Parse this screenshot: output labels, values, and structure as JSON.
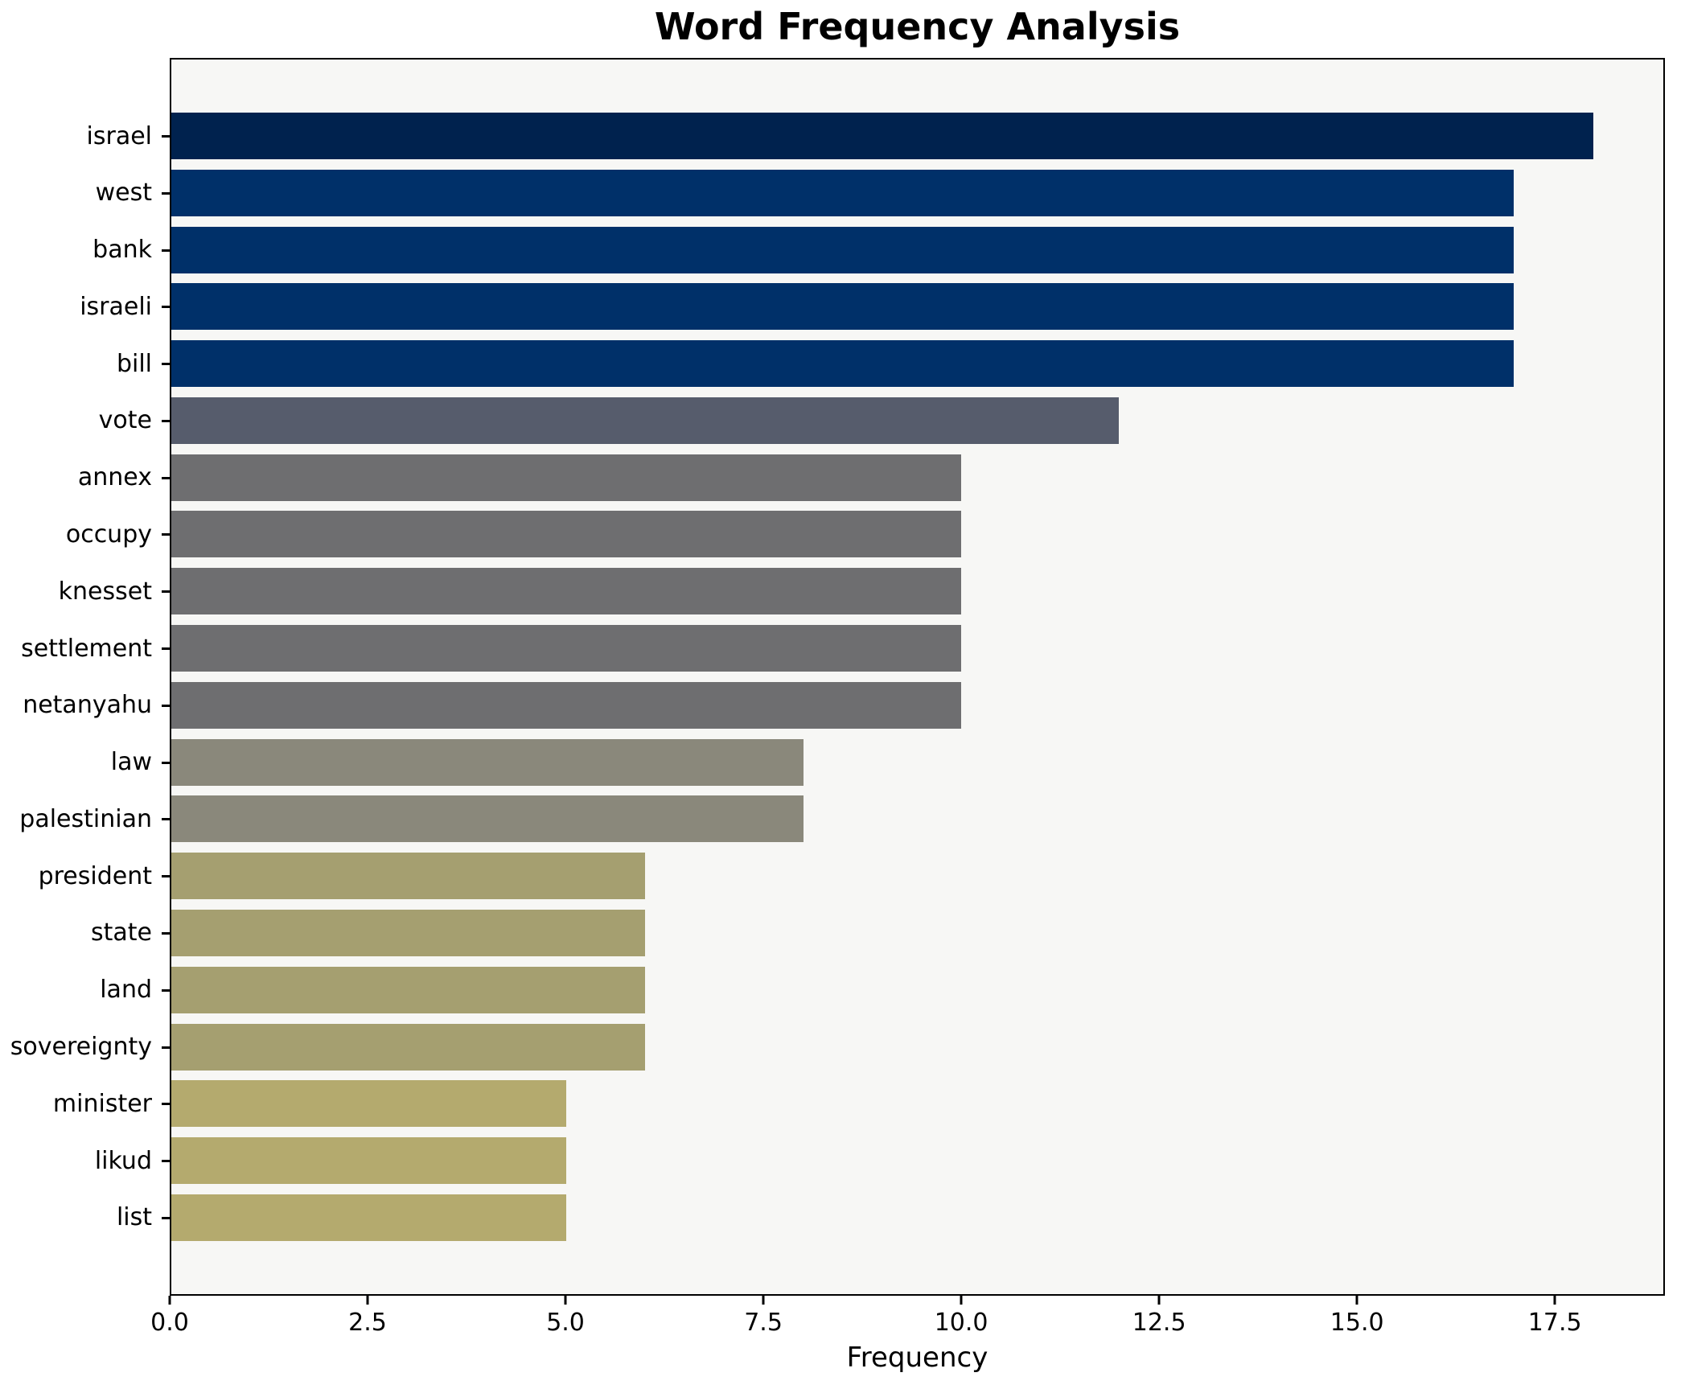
{
  "title": "Word Frequency Analysis",
  "chart_data": {
    "type": "bar",
    "orientation": "horizontal",
    "title": "Word Frequency Analysis",
    "xlabel": "Frequency",
    "ylabel": "",
    "categories": [
      "israel",
      "west",
      "bank",
      "israeli",
      "bill",
      "vote",
      "annex",
      "occupy",
      "knesset",
      "settlement",
      "netanyahu",
      "law",
      "palestinian",
      "president",
      "state",
      "land",
      "sovereignty",
      "minister",
      "likud",
      "list"
    ],
    "values": [
      18,
      17,
      17,
      17,
      17,
      12,
      10,
      10,
      10,
      10,
      10,
      8,
      8,
      6,
      6,
      6,
      6,
      5,
      5,
      5
    ],
    "bar_colors": [
      "#00224e",
      "#003069",
      "#003069",
      "#003069",
      "#003069",
      "#565c6c",
      "#6e6e70",
      "#6e6e70",
      "#6e6e70",
      "#6e6e70",
      "#6e6e70",
      "#8a887b",
      "#8a887b",
      "#a59f70",
      "#a59f70",
      "#a59f70",
      "#a59f70",
      "#b4aa6e",
      "#b4aa6e",
      "#b4aa6e"
    ],
    "xlim": [
      0,
      18.89
    ],
    "xticks": [
      0.0,
      2.5,
      5.0,
      7.5,
      10.0,
      12.5,
      15.0,
      17.5
    ],
    "xtick_labels": [
      "0.0",
      "2.5",
      "5.0",
      "7.5",
      "10.0",
      "12.5",
      "15.0",
      "17.5"
    ],
    "grid": false,
    "legend": null,
    "colors": {
      "plot_background": "#f7f7f5",
      "figure_background": "#ffffff",
      "spine": "#000000",
      "text": "#000000"
    }
  }
}
